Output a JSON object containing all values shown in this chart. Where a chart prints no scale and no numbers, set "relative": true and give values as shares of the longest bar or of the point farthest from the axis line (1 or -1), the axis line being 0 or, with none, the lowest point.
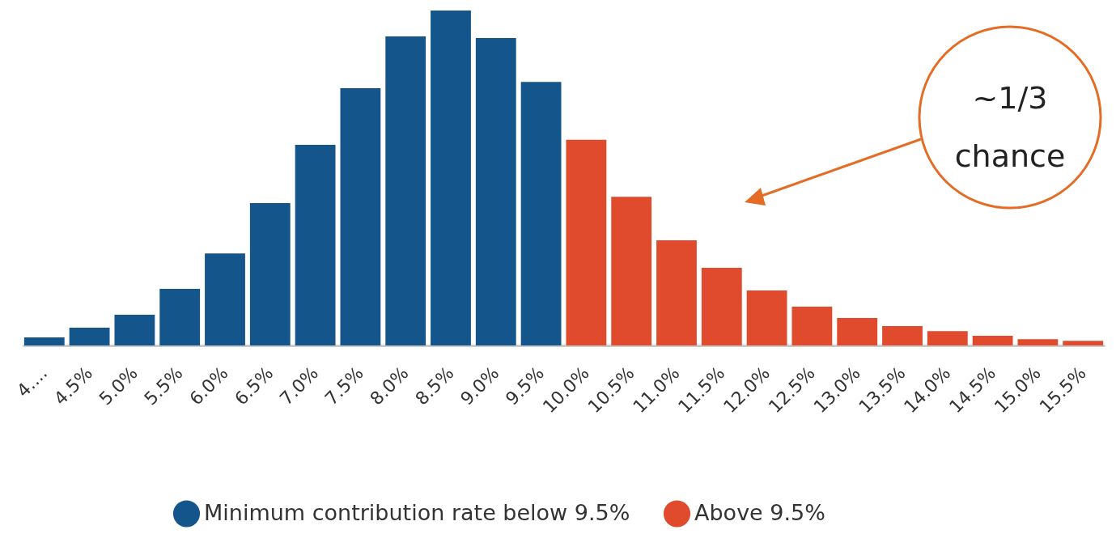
{
  "chart_data": {
    "type": "bar",
    "relative": true,
    "categories": [
      "4....",
      "4.5%",
      "5.0%",
      "5.5%",
      "6.0%",
      "6.5%",
      "7.0%",
      "7.5%",
      "8.0%",
      "8.5%",
      "9.0%",
      "9.5%",
      "10.0%",
      "10.5%",
      "11.0%",
      "11.5%",
      "12.0%",
      "12.5%",
      "13.0%",
      "13.5%",
      "14.0%",
      "14.5%",
      "15.0%",
      "15.5%"
    ],
    "series": [
      {
        "name": "Minimum contribution rate below 9.5%",
        "color": "#14568b",
        "values": [
          0.024,
          0.053,
          0.092,
          0.169,
          0.275,
          0.425,
          0.599,
          0.768,
          0.923,
          1,
          0.918,
          0.787,
          null,
          null,
          null,
          null,
          null,
          null,
          null,
          null,
          null,
          null,
          null,
          null
        ]
      },
      {
        "name": "Above 9.5%",
        "color": "#e04a2d",
        "values": [
          null,
          null,
          null,
          null,
          null,
          null,
          null,
          null,
          null,
          null,
          null,
          null,
          0.614,
          0.444,
          0.314,
          0.232,
          0.164,
          0.116,
          0.082,
          0.058,
          0.043,
          0.029,
          0.019,
          0.014
        ]
      }
    ],
    "annotations": [
      "~1/3 chance"
    ],
    "legend": "bottom"
  }
}
